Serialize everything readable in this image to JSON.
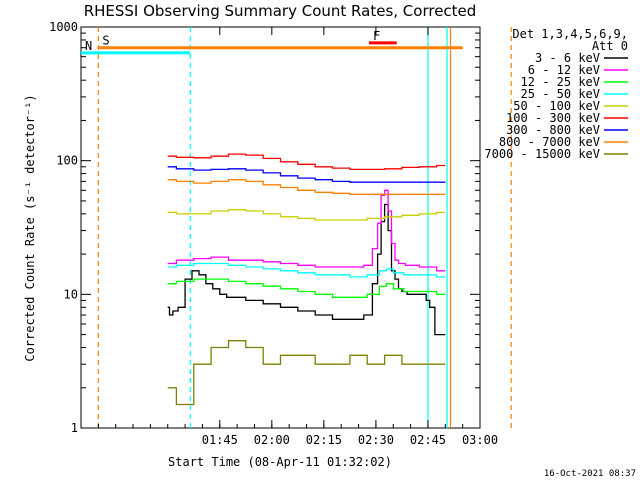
{
  "chart_data": {
    "type": "line",
    "title": "RHESSI Observing Summary Count Rates, Corrected",
    "xlabel": "Start Time (08-Apr-11 01:32:02)",
    "ylabel": "Corrected Count Rate (s⁻¹ detector⁻¹)",
    "yscale": "log",
    "ylim": [
      1,
      1000
    ],
    "xlim_minutes": [
      -25,
      90
    ],
    "xticks": [
      {
        "minute": 15,
        "label": "01:45"
      },
      {
        "minute": 30,
        "label": "02:00"
      },
      {
        "minute": 45,
        "label": "02:15"
      },
      {
        "minute": 60,
        "label": "02:30"
      },
      {
        "minute": 75,
        "label": "02:45"
      },
      {
        "minute": 90,
        "label": "03:00"
      }
    ],
    "yticks": [
      {
        "value": 1,
        "label": "1"
      },
      {
        "value": 10,
        "label": "10"
      },
      {
        "value": 100,
        "label": "100"
      },
      {
        "value": 1000,
        "label": "1000"
      }
    ],
    "legend_header": [
      "Det 1,3,4,5,6,9,",
      "Att 0"
    ],
    "legend_position": "right",
    "series": [
      {
        "name": "3 - 6 keV",
        "color": "#000000",
        "x": [
          0,
          1,
          2,
          4,
          6,
          8,
          10,
          12,
          14,
          16,
          18,
          20,
          25,
          30,
          35,
          40,
          45,
          50,
          55,
          58,
          60,
          61,
          62,
          63,
          64,
          65,
          66,
          67,
          68,
          70,
          72,
          74,
          75,
          76,
          78,
          80
        ],
        "y": [
          8,
          7,
          7.5,
          8,
          13,
          15,
          14,
          12,
          11,
          10,
          9.5,
          9.5,
          9,
          8.5,
          8,
          7.5,
          7,
          6.5,
          6.5,
          7,
          12,
          20,
          35,
          47,
          30,
          15,
          13,
          11,
          10.5,
          10,
          10,
          10,
          9,
          8,
          5,
          5
        ]
      },
      {
        "name": "6 - 12 keV",
        "color": "#ff00ff",
        "x": [
          0,
          5,
          10,
          15,
          20,
          25,
          30,
          35,
          40,
          45,
          50,
          55,
          58,
          60,
          61,
          62,
          63,
          64,
          65,
          66,
          67,
          70,
          75,
          80
        ],
        "y": [
          17,
          18,
          18.5,
          19,
          18,
          18,
          17.5,
          17,
          16.5,
          16,
          16,
          16,
          16.5,
          22,
          34,
          55,
          60,
          42,
          24,
          18,
          17,
          16.5,
          16,
          15
        ]
      },
      {
        "name": "12 - 25 keV",
        "color": "#00ff00",
        "x": [
          0,
          5,
          10,
          15,
          20,
          25,
          30,
          35,
          40,
          45,
          50,
          55,
          60,
          62,
          64,
          66,
          70,
          75,
          80
        ],
        "y": [
          12,
          12.5,
          13,
          13,
          12.5,
          12,
          11.5,
          11,
          10.5,
          10,
          9.5,
          9.5,
          10,
          11.5,
          12,
          11,
          10.5,
          10.5,
          10
        ]
      },
      {
        "name": "25 - 50 keV",
        "color": "#00ffff",
        "x": [
          0,
          5,
          10,
          15,
          20,
          25,
          30,
          35,
          40,
          45,
          50,
          55,
          60,
          62,
          64,
          66,
          70,
          75,
          80
        ],
        "y": [
          16,
          16.5,
          17,
          17,
          16.5,
          16,
          15.5,
          15,
          14.5,
          14,
          14,
          13.5,
          14,
          15,
          15.5,
          14.5,
          14,
          14,
          13.5
        ]
      },
      {
        "name": "50 - 100 keV",
        "color": "#cccc00",
        "x": [
          0,
          5,
          10,
          15,
          20,
          25,
          30,
          35,
          40,
          45,
          50,
          55,
          60,
          65,
          70,
          75,
          80
        ],
        "y": [
          41,
          40,
          40,
          42,
          43,
          42,
          40,
          38,
          37,
          36,
          36,
          36,
          37,
          38,
          39,
          40,
          41
        ]
      },
      {
        "name": "100 - 300 keV",
        "color": "#ff0000",
        "x": [
          0,
          5,
          10,
          15,
          20,
          25,
          30,
          35,
          40,
          45,
          50,
          55,
          60,
          65,
          70,
          75,
          80
        ],
        "y": [
          108,
          106,
          105,
          108,
          112,
          110,
          104,
          98,
          94,
          90,
          88,
          86,
          86,
          87,
          89,
          90,
          92
        ]
      },
      {
        "name": "300 - 800 keV",
        "color": "#0000ff",
        "x": [
          0,
          5,
          10,
          15,
          20,
          25,
          30,
          35,
          40,
          45,
          50,
          55,
          60,
          65,
          70,
          75,
          80
        ],
        "y": [
          90,
          87,
          85,
          86,
          87,
          85,
          81,
          77,
          74,
          72,
          70,
          69,
          69,
          69,
          69,
          69,
          69
        ]
      },
      {
        "name": "800 - 7000 keV",
        "color": "#ff8000",
        "x": [
          0,
          5,
          10,
          15,
          20,
          25,
          30,
          35,
          40,
          45,
          50,
          55,
          60,
          65,
          70,
          75,
          80
        ],
        "y": [
          72,
          70,
          68,
          70,
          72,
          70,
          66,
          63,
          60,
          58,
          57,
          56,
          56,
          56,
          56,
          56,
          56
        ]
      },
      {
        "name": "7000 - 15000 keV",
        "color": "#808000",
        "x": [
          0,
          5,
          10,
          15,
          20,
          25,
          30,
          35,
          40,
          45,
          50,
          55,
          60,
          65,
          70,
          75,
          80
        ],
        "y": [
          2,
          1.5,
          3,
          4,
          4.5,
          4,
          3,
          3.5,
          3.5,
          3,
          3,
          3.5,
          3,
          3.5,
          3,
          3,
          3
        ]
      }
    ],
    "markers": [
      {
        "label": "S",
        "color": "#ff8000",
        "x": [
          -20,
          85
        ],
        "y": 700
      },
      {
        "label": "N",
        "color": "#00ffff",
        "x": [
          -25,
          6.5
        ],
        "y": 640
      },
      {
        "label": "F",
        "color": "#ff0000",
        "x": [
          58,
          66
        ],
        "y": 760
      }
    ],
    "vertical_lines": [
      {
        "minute": -20,
        "color": "#ff8000",
        "dashed": true
      },
      {
        "minute": 6.5,
        "color": "#00ffff",
        "dashed": true
      },
      {
        "minute": 75,
        "color": "#00ffff",
        "dashed": false
      },
      {
        "minute": 81.5,
        "color": "#ff8000",
        "dashed": false
      },
      {
        "minute": 99,
        "color": "#ff8000",
        "dashed": true
      },
      {
        "minute": 80.5,
        "color": "#00ffff",
        "dashed": false
      }
    ],
    "footer": "16-Oct-2021 08:37"
  }
}
